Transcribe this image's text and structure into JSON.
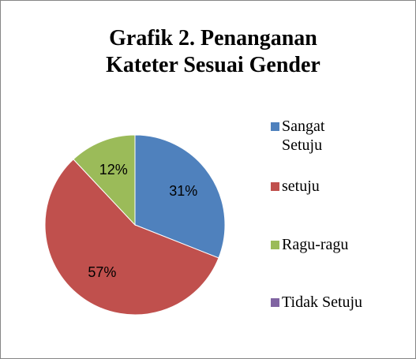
{
  "chart_data": {
    "type": "pie",
    "title": "Grafik 2. Penanganan Kateter Sesuai Gender",
    "categories": [
      "Sangat Setuju",
      "setuju",
      "Ragu-ragu",
      "Tidak Setuju"
    ],
    "values": [
      31,
      57,
      12,
      0
    ],
    "value_labels": [
      "31%",
      "57%",
      "12%",
      null
    ],
    "colors": [
      "#4f81bd",
      "#c0504d",
      "#9bbb59",
      "#8064a2"
    ],
    "legend": "right"
  }
}
